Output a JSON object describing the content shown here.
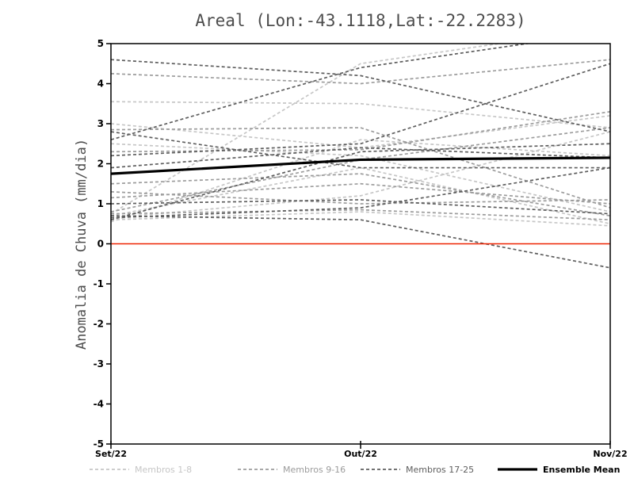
{
  "chart_data": {
    "type": "line",
    "title": "Areal (Lon:-43.1118,Lat:-22.2283)",
    "ylabel": "Anomalia de Chuva (mm/dia)",
    "xlabel": "",
    "categories": [
      "Set/22",
      "Out/22",
      "Nov/22"
    ],
    "ylim": [
      -5,
      5
    ],
    "yticks": [
      -5,
      -4,
      -3,
      -2,
      -1,
      0,
      1,
      2,
      3,
      4,
      5
    ],
    "grid": false,
    "legend_position": "bottom",
    "zero_line": {
      "y": 0,
      "color": "#ee2200"
    },
    "ensemble_mean": {
      "label": "Ensemble Mean",
      "color": "#000000",
      "values": [
        1.75,
        2.1,
        2.15
      ]
    },
    "member_groups": [
      {
        "label": "Membros 1-8",
        "color": "#c6c6c6"
      },
      {
        "label": "Membros 9-16",
        "color": "#9c9c9c"
      },
      {
        "label": "Membros 17-25",
        "color": "#5e5e5e"
      }
    ],
    "members": [
      {
        "group": 0,
        "values": [
          3.55,
          3.5,
          2.9
        ]
      },
      {
        "group": 0,
        "values": [
          3.0,
          2.4,
          3.2
        ]
      },
      {
        "group": 0,
        "values": [
          0.75,
          4.5,
          5.4
        ]
      },
      {
        "group": 0,
        "values": [
          0.7,
          1.9,
          0.5
        ]
      },
      {
        "group": 0,
        "values": [
          0.65,
          1.2,
          2.8
        ]
      },
      {
        "group": 0,
        "values": [
          0.6,
          0.8,
          0.45
        ]
      },
      {
        "group": 0,
        "values": [
          2.5,
          2.2,
          0.8
        ]
      },
      {
        "group": 0,
        "values": [
          0.55,
          2.6,
          2.2
        ]
      },
      {
        "group": 1,
        "values": [
          4.25,
          4.0,
          4.6
        ]
      },
      {
        "group": 1,
        "values": [
          2.85,
          2.9,
          0.9
        ]
      },
      {
        "group": 1,
        "values": [
          2.3,
          2.35,
          3.3
        ]
      },
      {
        "group": 1,
        "values": [
          1.5,
          1.75,
          0.7
        ]
      },
      {
        "group": 1,
        "values": [
          1.3,
          1.0,
          1.1
        ]
      },
      {
        "group": 1,
        "values": [
          0.8,
          2.1,
          2.9
        ]
      },
      {
        "group": 1,
        "values": [
          0.75,
          0.85,
          0.6
        ]
      },
      {
        "group": 1,
        "values": [
          1.15,
          1.5,
          1.0
        ]
      },
      {
        "group": 2,
        "values": [
          4.6,
          4.2,
          2.8
        ]
      },
      {
        "group": 2,
        "values": [
          2.2,
          2.5,
          4.5
        ]
      },
      {
        "group": 2,
        "values": [
          1.9,
          2.4,
          2.15
        ]
      },
      {
        "group": 2,
        "values": [
          0.7,
          0.6,
          -0.6
        ]
      },
      {
        "group": 2,
        "values": [
          2.8,
          1.9,
          1.9
        ]
      },
      {
        "group": 2,
        "values": [
          0.6,
          2.3,
          2.5
        ]
      },
      {
        "group": 2,
        "values": [
          1.0,
          1.1,
          0.75
        ]
      },
      {
        "group": 2,
        "values": [
          0.65,
          0.9,
          1.9
        ]
      },
      {
        "group": 2,
        "values": [
          2.6,
          4.4,
          5.3
        ]
      }
    ]
  }
}
